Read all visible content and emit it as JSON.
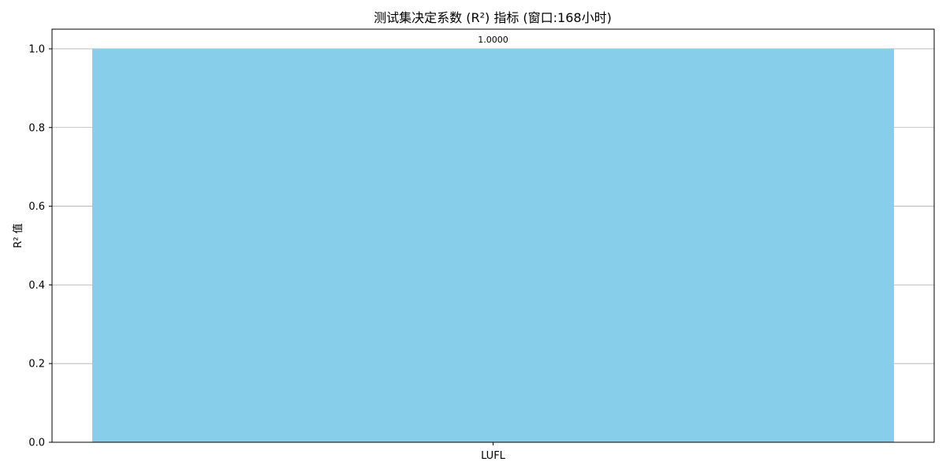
{
  "chart_data": {
    "type": "bar",
    "title": "测试集决定系数 (R²) 指标 (窗口:168小时)",
    "xlabel": "",
    "ylabel": "R² 值",
    "categories": [
      "LUFL"
    ],
    "values": [
      1.0
    ],
    "value_labels": [
      "1.0000"
    ],
    "ylim": [
      0,
      1.05
    ],
    "yticks": [
      0.0,
      0.2,
      0.4,
      0.6,
      0.8,
      1.0
    ],
    "ytick_labels": [
      "0.0",
      "0.2",
      "0.4",
      "0.6",
      "0.8",
      "1.0"
    ],
    "grid": "y",
    "bar_color": "#87ceeb",
    "grid_color": "#b0b0b0"
  }
}
